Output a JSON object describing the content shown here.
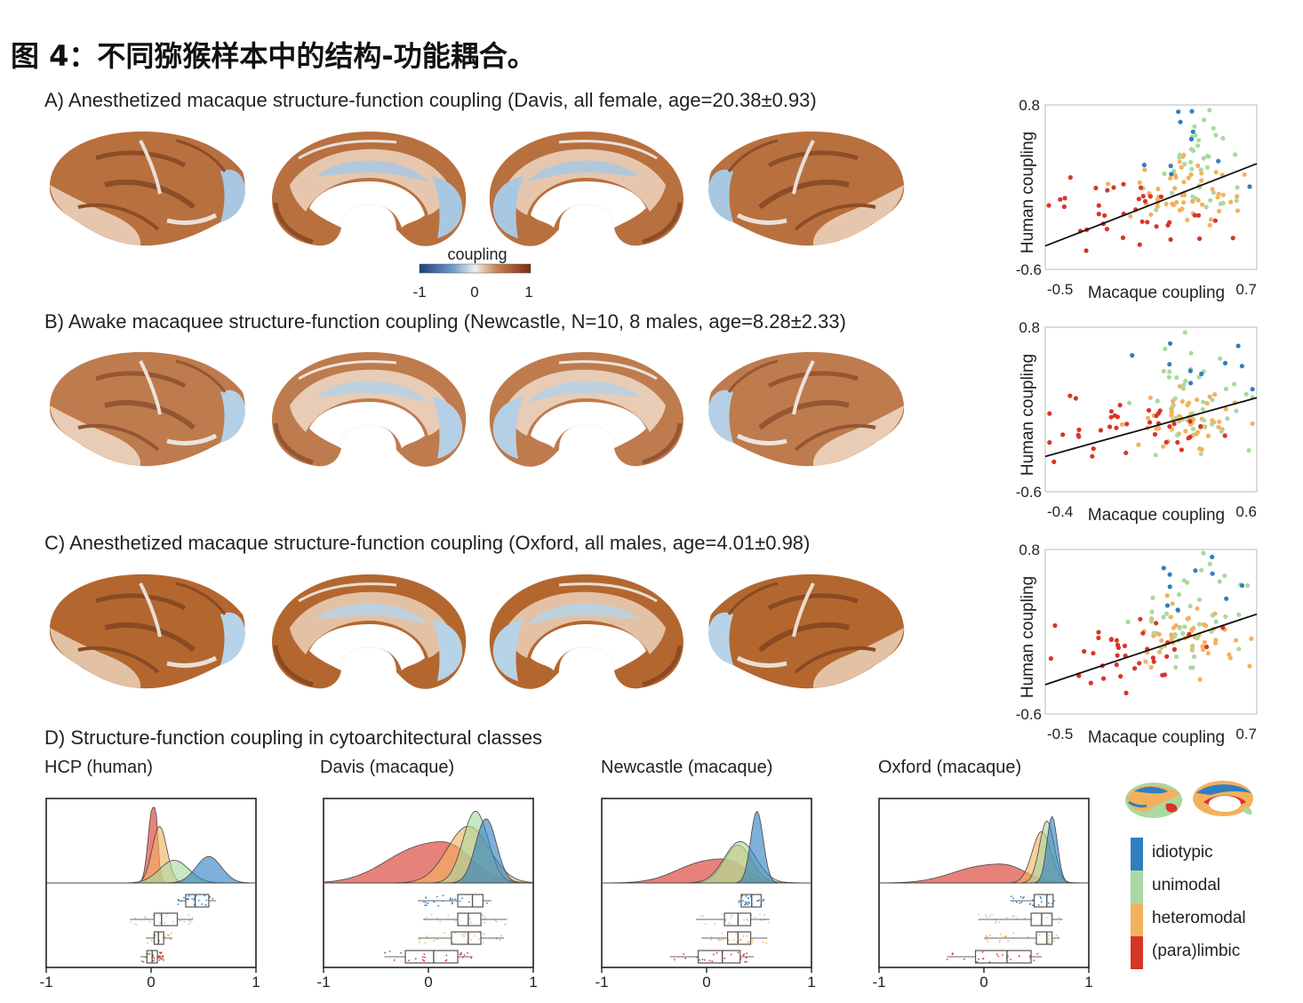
{
  "figure": {
    "title": "图 4：不同猕猴样本中的结构-功能耦合。"
  },
  "panels": {
    "A": {
      "title": "A) Anesthetized macaque structure-function coupling (Davis, all female, age=20.38±0.93)"
    },
    "B": {
      "title": "B) Awake macaquee structure-function coupling (Newcastle, N=10, 8 males, age=8.28±2.33)"
    },
    "C": {
      "title": "C) Anesthetized macaque structure-function coupling (Oxford, all males, age=4.01±0.98)"
    },
    "D": {
      "title": "D) Structure-function coupling in cytoarchitectural classes"
    }
  },
  "colorbar": {
    "label": "coupling",
    "ticks": [
      "-1",
      "0",
      "1"
    ],
    "colors": [
      "#1f3f7a",
      "#6f9ccb",
      "#eeeeee",
      "#c8814f",
      "#7a2a12"
    ]
  },
  "class_colors": {
    "idiotypic": "#2f7fc1",
    "unimodal": "#a9d9a0",
    "heteromodal": "#f3b15e",
    "paralimbic": "#d8352a"
  },
  "legend": {
    "items": [
      {
        "label": "idiotypic",
        "color": "#2f7fc1"
      },
      {
        "label": "unimodal",
        "color": "#a9d9a0"
      },
      {
        "label": "heteromodal",
        "color": "#f3b15e"
      },
      {
        "label": "(para)limbic",
        "color": "#d8352a"
      }
    ]
  },
  "chart_data": [
    {
      "type": "scatter",
      "panel": "A",
      "xlabel": "Macaque coupling",
      "ylabel": "Human coupling",
      "x_tick_labels": [
        "-0.5",
        "0.7"
      ],
      "y_tick_labels": [
        "0.8",
        "-0.6"
      ],
      "xlim": [
        -0.5,
        0.7
      ],
      "ylim": [
        -0.6,
        0.8
      ],
      "fit_line": {
        "x": [
          -0.5,
          0.7
        ],
        "y": [
          -0.4,
          0.3
        ]
      },
      "seed": 11
    },
    {
      "type": "scatter",
      "panel": "B",
      "xlabel": "Macaque coupling",
      "ylabel": "Human coupling",
      "x_tick_labels": [
        "-0.4",
        "0.6"
      ],
      "y_tick_labels": [
        "0.8",
        "-0.6"
      ],
      "xlim": [
        -0.4,
        0.6
      ],
      "ylim": [
        -0.6,
        0.8
      ],
      "fit_line": {
        "x": [
          -0.4,
          0.6
        ],
        "y": [
          -0.3,
          0.2
        ]
      },
      "seed": 23
    },
    {
      "type": "scatter",
      "panel": "C",
      "xlabel": "Macaque coupling",
      "ylabel": "Human coupling",
      "x_tick_labels": [
        "-0.5",
        "0.7"
      ],
      "y_tick_labels": [
        "0.8",
        "-0.6"
      ],
      "xlim": [
        -0.5,
        0.7
      ],
      "ylim": [
        -0.6,
        0.8
      ],
      "fit_line": {
        "x": [
          -0.5,
          0.7
        ],
        "y": [
          -0.35,
          0.25
        ]
      },
      "seed": 37
    },
    {
      "type": "area",
      "panel": "D",
      "name": "HCP (human)",
      "x_tick_labels": [
        "-1",
        "0",
        "1"
      ],
      "xlim": [
        -1,
        1
      ],
      "densities": [
        {
          "class": "idiotypic",
          "mean": 0.55,
          "sd": 0.12,
          "height": 0.35
        },
        {
          "class": "unimodal",
          "mean": 0.22,
          "sd": 0.14,
          "height": 0.3
        },
        {
          "class": "heteromodal",
          "mean": 0.08,
          "sd": 0.07,
          "height": 0.75
        },
        {
          "class": "paralimbic",
          "mean": 0.01,
          "sd": 0.04,
          "height": 0.95
        }
      ],
      "boxes": [
        {
          "class": "idiotypic",
          "q1": 0.33,
          "median": 0.42,
          "q3": 0.55,
          "min": 0.25,
          "max": 0.62
        },
        {
          "class": "unimodal",
          "q1": 0.03,
          "median": 0.1,
          "q3": 0.25,
          "min": -0.2,
          "max": 0.4
        },
        {
          "class": "heteromodal",
          "q1": 0.03,
          "median": 0.07,
          "q3": 0.12,
          "min": -0.05,
          "max": 0.2
        },
        {
          "class": "paralimbic",
          "q1": -0.04,
          "median": 0.01,
          "q3": 0.06,
          "min": -0.1,
          "max": 0.12
        }
      ]
    },
    {
      "type": "area",
      "panel": "D",
      "name": "Davis (macaque)",
      "x_tick_labels": [
        "-1",
        "0",
        "1"
      ],
      "xlim": [
        -1,
        1
      ],
      "densities": [
        {
          "class": "idiotypic",
          "mean": 0.55,
          "sd": 0.1,
          "height": 0.85
        },
        {
          "class": "unimodal",
          "mean": 0.45,
          "sd": 0.12,
          "height": 0.95
        },
        {
          "class": "heteromodal",
          "mean": 0.38,
          "sd": 0.2,
          "height": 0.75
        },
        {
          "class": "paralimbic",
          "mean": -0.05,
          "sd": 0.35,
          "height": 0.48
        }
      ],
      "boxes": [
        {
          "class": "idiotypic",
          "q1": 0.28,
          "median": 0.42,
          "q3": 0.52,
          "min": -0.1,
          "max": 0.6
        },
        {
          "class": "unimodal",
          "q1": 0.28,
          "median": 0.38,
          "q3": 0.5,
          "min": -0.05,
          "max": 0.75
        },
        {
          "class": "heteromodal",
          "q1": 0.22,
          "median": 0.38,
          "q3": 0.5,
          "min": -0.1,
          "max": 0.72
        },
        {
          "class": "paralimbic",
          "q1": -0.22,
          "median": 0.05,
          "q3": 0.28,
          "min": -0.42,
          "max": 0.42
        }
      ]
    },
    {
      "type": "area",
      "panel": "D",
      "name": "Newcastle (macaque)",
      "x_tick_labels": [
        "-1",
        "0",
        "1"
      ],
      "xlim": [
        -1,
        1
      ],
      "densities": [
        {
          "class": "idiotypic",
          "mean": 0.48,
          "sd": 0.06,
          "height": 0.95
        },
        {
          "class": "unimodal",
          "mean": 0.32,
          "sd": 0.15,
          "height": 0.55
        },
        {
          "class": "heteromodal",
          "mean": 0.3,
          "sd": 0.13,
          "height": 0.5
        },
        {
          "class": "paralimbic",
          "mean": 0.0,
          "sd": 0.28,
          "height": 0.28
        }
      ],
      "boxes": [
        {
          "class": "idiotypic",
          "q1": 0.33,
          "median": 0.43,
          "q3": 0.52,
          "min": 0.3,
          "max": 0.55
        },
        {
          "class": "unimodal",
          "q1": 0.17,
          "median": 0.3,
          "q3": 0.42,
          "min": -0.1,
          "max": 0.6
        },
        {
          "class": "heteromodal",
          "q1": 0.2,
          "median": 0.3,
          "q3": 0.42,
          "min": -0.05,
          "max": 0.58
        },
        {
          "class": "paralimbic",
          "q1": -0.08,
          "median": 0.15,
          "q3": 0.32,
          "min": -0.35,
          "max": 0.45
        }
      ]
    },
    {
      "type": "area",
      "panel": "D",
      "name": "Oxford (macaque)",
      "x_tick_labels": [
        "-1",
        "0",
        "1"
      ],
      "xlim": [
        -1,
        1
      ],
      "densities": [
        {
          "class": "idiotypic",
          "mean": 0.65,
          "sd": 0.05,
          "height": 0.88
        },
        {
          "class": "unimodal",
          "mean": 0.6,
          "sd": 0.07,
          "height": 0.82
        },
        {
          "class": "heteromodal",
          "mean": 0.55,
          "sd": 0.09,
          "height": 0.68
        },
        {
          "class": "paralimbic",
          "mean": 0.0,
          "sd": 0.3,
          "height": 0.22
        }
      ],
      "boxes": [
        {
          "class": "idiotypic",
          "q1": 0.48,
          "median": 0.6,
          "q3": 0.66,
          "min": 0.25,
          "max": 0.68
        },
        {
          "class": "unimodal",
          "q1": 0.45,
          "median": 0.55,
          "q3": 0.65,
          "min": -0.05,
          "max": 0.75
        },
        {
          "class": "heteromodal",
          "q1": 0.5,
          "median": 0.6,
          "q3": 0.65,
          "min": 0.0,
          "max": 0.72
        },
        {
          "class": "paralimbic",
          "q1": -0.08,
          "median": 0.22,
          "q3": 0.45,
          "min": -0.35,
          "max": 0.55
        }
      ]
    }
  ]
}
